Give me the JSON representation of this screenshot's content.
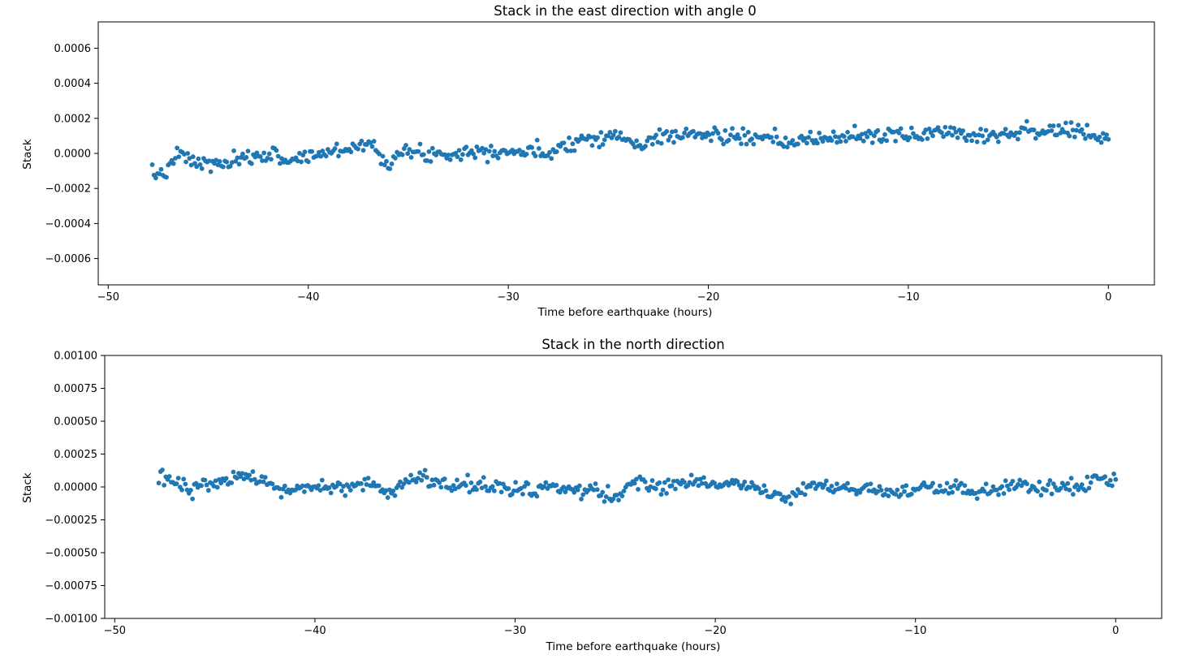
{
  "chart_data": [
    {
      "type": "scatter",
      "title": "Stack in the east direction with angle 0",
      "xlabel": "Time before earthquake (hours)",
      "ylabel": "Stack",
      "xlim": [
        -50.5,
        2.3
      ],
      "ylim": [
        -0.00075,
        0.00075
      ],
      "xticks": [
        -50,
        -40,
        -30,
        -20,
        -10,
        0
      ],
      "xtick_labels": [
        "−50",
        "−40",
        "−30",
        "−20",
        "−10",
        "0"
      ],
      "yticks": [
        0.0006,
        0.0004,
        0.0002,
        0.0,
        -0.0002,
        -0.0004,
        -0.0006
      ],
      "ytick_labels": [
        "0.0006",
        "0.0004",
        "0.0002",
        "0.0000",
        "−0.0002",
        "−0.0004",
        "−0.0006"
      ],
      "grid": false,
      "color": "#1f77b4",
      "series": [
        {
          "x_start": -47.8,
          "x_end": 0.0,
          "n_points": 540,
          "trend_points": [
            [
              -47.8,
              -0.000125
            ],
            [
              -47.0,
              -0.0001
            ],
            [
              -46.5,
              0.0
            ],
            [
              -45.5,
              -6e-05
            ],
            [
              -44.0,
              -6e-05
            ],
            [
              -42.0,
              0.0
            ],
            [
              -41.0,
              -4e-05
            ],
            [
              -38.0,
              3e-05
            ],
            [
              -37.0,
              6e-05
            ],
            [
              -36.0,
              -5e-05
            ],
            [
              -35.5,
              0.0
            ],
            [
              -33.0,
              0.0
            ],
            [
              -31.0,
              2e-05
            ],
            [
              -28.0,
              0.0
            ],
            [
              -27.5,
              4e-05
            ],
            [
              -26.0,
              9e-05
            ],
            [
              -24.5,
              0.0001
            ],
            [
              -23.5,
              4e-05
            ],
            [
              -22.0,
              0.00011
            ],
            [
              -19.0,
              0.0001
            ],
            [
              -16.0,
              6e-05
            ],
            [
              -13.0,
              0.0001
            ],
            [
              -10.0,
              0.0001
            ],
            [
              -8.0,
              0.00013
            ],
            [
              -6.5,
              0.0001
            ],
            [
              -4.0,
              0.00013
            ],
            [
              -2.0,
              0.00013
            ],
            [
              0.0,
              8e-05
            ]
          ],
          "spread": 2.2e-05,
          "seed": 7
        }
      ]
    },
    {
      "type": "scatter",
      "title": "Stack in the north direction",
      "xlabel": "Time before earthquake (hours)",
      "ylabel": "Stack",
      "xlim": [
        -50.5,
        2.3
      ],
      "ylim": [
        -0.001,
        0.001
      ],
      "xticks": [
        -50,
        -40,
        -30,
        -20,
        -10,
        0
      ],
      "xtick_labels": [
        "−50",
        "−40",
        "−30",
        "−20",
        "−10",
        "0"
      ],
      "yticks": [
        0.001,
        0.00075,
        0.0005,
        0.00025,
        0.0,
        -0.00025,
        -0.0005,
        -0.00075,
        -0.001
      ],
      "ytick_labels": [
        "0.00100",
        "0.00075",
        "0.00050",
        "0.00025",
        "0.00000",
        "−0.00025",
        "−0.00050",
        "−0.00075",
        "−0.00100"
      ],
      "grid": false,
      "color": "#1f77b4",
      "series": [
        {
          "x_start": -47.8,
          "x_end": 0.0,
          "n_points": 540,
          "trend_points": [
            [
              -47.8,
              5e-05
            ],
            [
              -47.0,
              6e-05
            ],
            [
              -46.5,
              -2e-05
            ],
            [
              -44.0,
              6e-05
            ],
            [
              -43.5,
              8e-05
            ],
            [
              -42.0,
              -2e-05
            ],
            [
              -40.0,
              -1e-05
            ],
            [
              -37.5,
              2e-05
            ],
            [
              -36.0,
              -6e-05
            ],
            [
              -35.5,
              4e-05
            ],
            [
              -35.0,
              6e-05
            ],
            [
              -33.0,
              2e-05
            ],
            [
              -30.0,
              -1e-05
            ],
            [
              -28.0,
              -2e-05
            ],
            [
              -26.0,
              -3e-05
            ],
            [
              -25.0,
              -0.0001
            ],
            [
              -24.0,
              4e-05
            ],
            [
              -22.0,
              0.0
            ],
            [
              -21.0,
              5e-05
            ],
            [
              -18.0,
              0.0
            ],
            [
              -17.0,
              -8e-05
            ],
            [
              -15.0,
              0.0
            ],
            [
              -12.0,
              -2e-05
            ],
            [
              -11.0,
              -6e-05
            ],
            [
              -9.0,
              0.0
            ],
            [
              -7.0,
              -4e-05
            ],
            [
              -5.0,
              -1e-05
            ],
            [
              -2.0,
              0.0
            ],
            [
              0.0,
              7e-05
            ]
          ],
          "spread": 3e-05,
          "seed": 13
        }
      ]
    }
  ]
}
